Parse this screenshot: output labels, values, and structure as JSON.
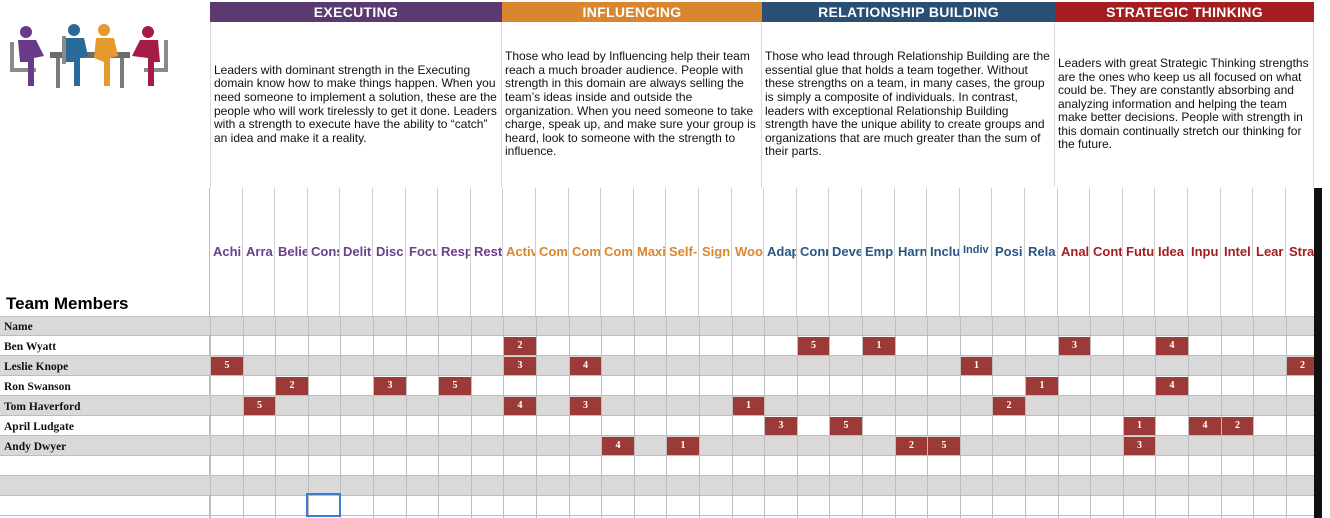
{
  "domains": [
    {
      "label": "EXECUTING",
      "color": "#5b3a72",
      "description": "Leaders with dominant strength in the Executing domain know how to make things happen. When you need someone to implement a solution, these are the people who will work tirelessly to get it done. Leaders with a strength to execute have the ability to “catch” an idea and make it a reality."
    },
    {
      "label": "INFLUENCING",
      "color": "#d9862e",
      "description": "Those who lead by Influencing help their team reach a much broader audience. People with strength in this domain are always selling the team’s ideas inside and outside the organization. When you need someone to take charge, speak up, and make sure your group is heard, look to someone with the strength to influence."
    },
    {
      "label": "RELATIONSHIP BUILDING",
      "color": "#2a4f75",
      "description": "Those who lead through Relationship Building are the essential glue that holds a team together. Without these strengths on a team, in many cases, the group is simply a composite of individuals. In contrast, leaders with exceptional Relationship Building strength have the unique ability to create groups and organizations that are much greater than the sum of their parts."
    },
    {
      "label": "STRATEGIC THINKING",
      "color": "#a51c21",
      "description": "Leaders with great Strategic Thinking strengths are the ones who keep us all focused on what could be. They are constantly absorbing and analyzing information and helping the team make better decisions. People with strength in this domain continually stretch our thinking for the future."
    }
  ],
  "team_members_label": "Team Members",
  "name_label": "Name",
  "colors": {
    "executing": "#6b3f8a",
    "influencing": "#d9862e",
    "relationship": "#2a5585",
    "strategic": "#a51c21",
    "badge": "#9b3a37"
  },
  "columns": [
    "Achi",
    "Arra",
    "Belie",
    "Cons",
    "Delit",
    "Disc",
    "Focu",
    "Resp",
    "Rest",
    "Activ",
    "Com",
    "Com",
    "Com",
    "Maxi",
    "Self-",
    "Sign",
    "Woo",
    "Adap",
    "Conn",
    "Deve",
    "Emp",
    "Harn",
    "Inclu",
    "Indiv",
    "Posi",
    "Rela",
    "Anal",
    "Cont",
    "Futu",
    "Idea",
    "Inpu",
    "Intel",
    "Lear",
    "Strate"
  ],
  "members": [
    {
      "name": "Ben Wyatt",
      "ranks": [
        [
          9,
          "2"
        ],
        [
          18,
          "5"
        ],
        [
          20,
          "1"
        ],
        [
          26,
          "3"
        ],
        [
          29,
          "4"
        ]
      ]
    },
    {
      "name": "Leslie Knope",
      "ranks": [
        [
          0,
          "5"
        ],
        [
          9,
          "3"
        ],
        [
          11,
          "4"
        ],
        [
          23,
          "1"
        ],
        [
          33,
          "2"
        ]
      ]
    },
    {
      "name": "Ron Swanson",
      "ranks": [
        [
          2,
          "2"
        ],
        [
          5,
          "3"
        ],
        [
          7,
          "5"
        ],
        [
          25,
          "1"
        ],
        [
          29,
          "4"
        ]
      ]
    },
    {
      "name": "Tom Haverford",
      "ranks": [
        [
          1,
          "5"
        ],
        [
          9,
          "4"
        ],
        [
          11,
          "3"
        ],
        [
          16,
          "1"
        ],
        [
          24,
          "2"
        ]
      ]
    },
    {
      "name": "April Ludgate",
      "ranks": [
        [
          17,
          "3"
        ],
        [
          19,
          "5"
        ],
        [
          28,
          "1"
        ],
        [
          30,
          "4"
        ],
        [
          31,
          "2"
        ]
      ]
    },
    {
      "name": "Andy Dwyer",
      "ranks": [
        [
          12,
          "4"
        ],
        [
          14,
          "1"
        ],
        [
          21,
          "2"
        ],
        [
          22,
          "5"
        ],
        [
          28,
          "3"
        ]
      ]
    }
  ]
}
